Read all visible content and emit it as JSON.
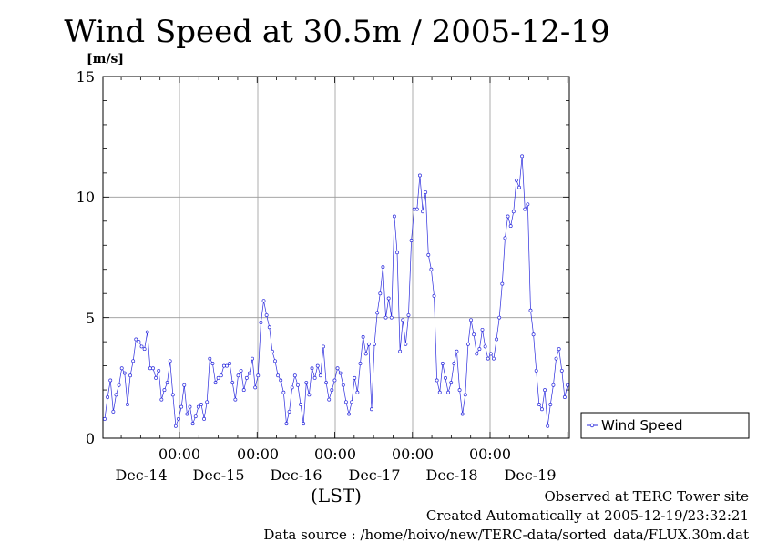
{
  "chart_data": {
    "type": "line",
    "title": "Wind Speed at 30.5m / 2005-12-19",
    "ylabel": "[m/s]",
    "xlabel": "(LST)",
    "ylim": [
      0,
      15
    ],
    "yticks": [
      "0",
      "5",
      "10",
      "15"
    ],
    "time_ticks": [
      "00:00",
      "00:00",
      "00:00",
      "00:00",
      "00:00"
    ],
    "date_ticks": [
      "Dec-14",
      "Dec-15",
      "Dec-16",
      "Dec-17",
      "Dec-18",
      "Dec-19"
    ],
    "grid": true,
    "legend_position": "right",
    "series_color": "#2b2bdd",
    "series": [
      {
        "name": "Wind Speed",
        "values": [
          0.8,
          1.7,
          2.4,
          1.1,
          1.8,
          2.2,
          2.9,
          2.7,
          1.4,
          2.6,
          3.2,
          4.1,
          4.0,
          3.8,
          3.7,
          4.4,
          2.9,
          2.9,
          2.5,
          2.8,
          1.6,
          2.0,
          2.3,
          3.2,
          1.8,
          0.5,
          0.8,
          1.3,
          2.2,
          1.0,
          1.3,
          0.6,
          0.9,
          1.3,
          1.4,
          0.8,
          1.5,
          3.3,
          3.1,
          2.3,
          2.5,
          2.6,
          3.0,
          3.0,
          3.1,
          2.3,
          1.6,
          2.6,
          2.8,
          2.0,
          2.5,
          2.7,
          3.3,
          2.1,
          2.6,
          4.8,
          5.7,
          5.1,
          4.6,
          3.6,
          3.2,
          2.6,
          2.4,
          1.9,
          0.6,
          1.1,
          2.1,
          2.6,
          2.2,
          1.4,
          0.6,
          2.3,
          1.8,
          2.9,
          2.5,
          3.0,
          2.6,
          3.8,
          2.3,
          1.6,
          2.0,
          2.4,
          2.9,
          2.7,
          2.2,
          1.5,
          1.0,
          1.5,
          2.5,
          1.9,
          3.1,
          4.2,
          3.5,
          3.9,
          1.2,
          3.9,
          5.2,
          6.0,
          7.1,
          5.0,
          5.8,
          5.0,
          9.2,
          7.7,
          3.6,
          4.9,
          3.9,
          5.1,
          8.2,
          9.5,
          9.5,
          10.9,
          9.4,
          10.2,
          7.6,
          7.0,
          5.9,
          2.4,
          1.9,
          3.1,
          2.5,
          1.9,
          2.3,
          3.1,
          3.6,
          2.0,
          1.0,
          1.8,
          3.9,
          4.9,
          4.3,
          3.5,
          3.7,
          4.5,
          3.8,
          3.3,
          3.5,
          3.3,
          4.1,
          5.0,
          6.4,
          8.3,
          9.2,
          8.8,
          9.4,
          10.7,
          10.4,
          11.7,
          9.5,
          9.7,
          5.3,
          4.3,
          2.8,
          1.4,
          1.2,
          2.0,
          0.5,
          1.4,
          2.2,
          3.3,
          3.7,
          2.8,
          1.7,
          2.2
        ]
      }
    ]
  },
  "legend": {
    "label": "Wind Speed"
  },
  "footer": {
    "line1": "Observed at TERC Tower site",
    "line2": "Created Automatically at 2005-12-19/23:32:21",
    "line3": "Data source : /home/hoivo/new/TERC-data/sorted_data/FLUX.30m.dat"
  }
}
